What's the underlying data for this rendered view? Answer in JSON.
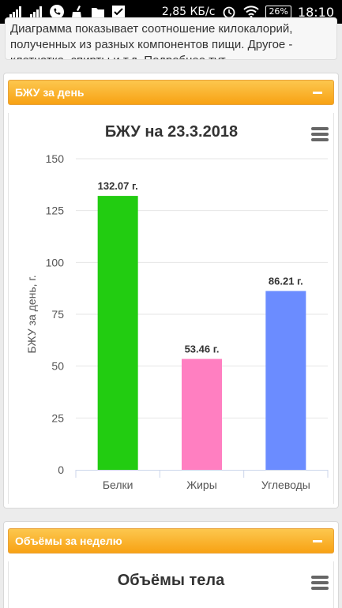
{
  "statusbar": {
    "speed": "2,85 КБ/с",
    "battery": "26%",
    "time": "18:10"
  },
  "description": {
    "line1": "Диаграмма показывает соотношение килокалорий,",
    "line2": "полученных из разных компонентов пищи. Другое -",
    "line3": "клетчатка, спирты и т.д. Подробнее тут…"
  },
  "panel1": {
    "header": "БЖУ за день"
  },
  "panel2": {
    "header": "Объёмы за неделю",
    "chart_title": "Объёмы тела"
  },
  "colors": {
    "accent": "#f8a214",
    "belki": "#22cc11",
    "zhiry": "#ff7fc1",
    "uglevody": "#6b8cff"
  },
  "chart_data": {
    "type": "bar",
    "title": "БЖУ на 23.3.2018",
    "ylabel": "БЖУ за день, г.",
    "xlabel": "",
    "categories": [
      "Белки",
      "Жиры",
      "Углеводы"
    ],
    "values": [
      132.07,
      53.46,
      86.21
    ],
    "data_labels": [
      "132.07 г.",
      "53.46 г.",
      "86.21 г."
    ],
    "yticks": [
      0,
      25,
      50,
      75,
      100,
      125,
      150
    ],
    "ylim": [
      0,
      150
    ],
    "grid": true,
    "legend": "none"
  }
}
